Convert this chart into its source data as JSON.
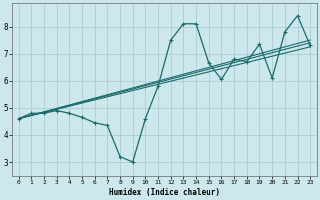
{
  "xlabel": "Humidex (Indice chaleur)",
  "bg_color": "#cce8ec",
  "grid_color": "#aacdd4",
  "line_color": "#1a6b6b",
  "xlim": [
    -0.5,
    23.5
  ],
  "ylim": [
    2.5,
    8.85
  ],
  "xticks": [
    0,
    1,
    2,
    3,
    4,
    5,
    6,
    7,
    8,
    9,
    10,
    11,
    12,
    13,
    14,
    15,
    16,
    17,
    18,
    19,
    20,
    21,
    22,
    23
  ],
  "yticks": [
    3,
    4,
    5,
    6,
    7,
    8
  ],
  "main_x": [
    0,
    1,
    2,
    3,
    4,
    5,
    6,
    7,
    8,
    9,
    10,
    11,
    12,
    13,
    14,
    15,
    16,
    17,
    18,
    19,
    20,
    21,
    22,
    23
  ],
  "main_y": [
    4.6,
    4.8,
    4.8,
    4.9,
    4.8,
    4.65,
    4.45,
    4.35,
    3.2,
    3.0,
    4.6,
    5.8,
    7.5,
    8.1,
    8.1,
    6.65,
    6.05,
    6.8,
    6.7,
    7.35,
    6.1,
    7.8,
    8.4,
    7.3
  ],
  "reg_lines": [
    {
      "x": [
        0,
        23
      ],
      "y": [
        4.6,
        7.25
      ]
    },
    {
      "x": [
        0,
        23
      ],
      "y": [
        4.6,
        7.4
      ]
    },
    {
      "x": [
        0,
        23
      ],
      "y": [
        4.6,
        7.5
      ]
    }
  ]
}
